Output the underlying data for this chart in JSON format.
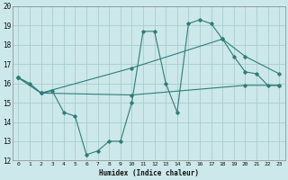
{
  "background_color": "#cce8ea",
  "grid_color": "#aacccc",
  "line_color": "#2e7d7a",
  "x_label": "Humidex (Indice chaleur)",
  "xlim": [
    -0.5,
    23.5
  ],
  "ylim": [
    12,
    20
  ],
  "yticks": [
    12,
    13,
    14,
    15,
    16,
    17,
    18,
    19,
    20
  ],
  "xticks": [
    0,
    1,
    2,
    3,
    4,
    5,
    6,
    7,
    8,
    9,
    10,
    11,
    12,
    13,
    14,
    15,
    16,
    17,
    18,
    19,
    20,
    21,
    22,
    23
  ],
  "series": [
    {
      "x": [
        0,
        1,
        2,
        3,
        4,
        5,
        6,
        7,
        8,
        9,
        10,
        11,
        12,
        13,
        14,
        15,
        16,
        17,
        18,
        19,
        20,
        21,
        22,
        23
      ],
      "y": [
        16.3,
        16.0,
        15.5,
        15.6,
        14.5,
        14.3,
        12.3,
        12.5,
        13.0,
        13.0,
        15.0,
        18.7,
        18.7,
        16.0,
        14.5,
        19.1,
        19.3,
        19.1,
        18.3,
        17.4,
        16.6,
        16.5,
        15.9,
        15.9
      ]
    },
    {
      "x": [
        0,
        2,
        10,
        20,
        23
      ],
      "y": [
        16.3,
        15.5,
        15.4,
        15.9,
        15.9
      ]
    },
    {
      "x": [
        0,
        2,
        10,
        18,
        20,
        23
      ],
      "y": [
        16.3,
        15.5,
        16.8,
        18.3,
        17.4,
        16.5
      ]
    }
  ]
}
